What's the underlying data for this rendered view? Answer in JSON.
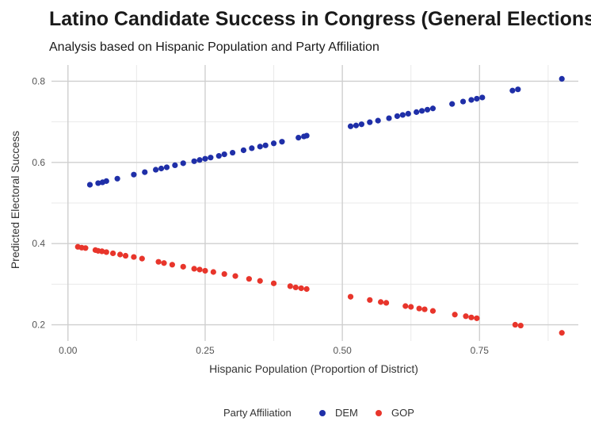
{
  "chart_data": {
    "type": "scatter",
    "title": "Latino Candidate Success in Congress (General Elections)",
    "subtitle": "Analysis based on Hispanic Population and Party Affiliation",
    "xlabel": "Hispanic Population (Proportion of District)",
    "ylabel": "Predicted Electoral Success",
    "xlim": [
      -0.03,
      0.93
    ],
    "ylim": [
      0.16,
      0.84
    ],
    "x_ticks": [
      "0.00",
      "0.25",
      "0.50",
      "0.75"
    ],
    "x_tick_values": [
      0,
      0.25,
      0.5,
      0.75
    ],
    "y_ticks": [
      "0.2",
      "0.4",
      "0.6",
      "0.8"
    ],
    "y_tick_values": [
      0.2,
      0.4,
      0.6,
      0.8
    ],
    "grid": true,
    "legend": {
      "title": "Party Affiliation",
      "position": "bottom",
      "entries": [
        "DEM",
        "GOP"
      ]
    },
    "series": [
      {
        "name": "DEM",
        "color": "#1f2fa8",
        "points": [
          [
            0.04,
            0.545
          ],
          [
            0.055,
            0.549
          ],
          [
            0.063,
            0.551
          ],
          [
            0.07,
            0.554
          ],
          [
            0.09,
            0.56
          ],
          [
            0.12,
            0.57
          ],
          [
            0.14,
            0.576
          ],
          [
            0.16,
            0.582
          ],
          [
            0.17,
            0.585
          ],
          [
            0.18,
            0.588
          ],
          [
            0.195,
            0.593
          ],
          [
            0.21,
            0.598
          ],
          [
            0.23,
            0.603
          ],
          [
            0.24,
            0.606
          ],
          [
            0.25,
            0.609
          ],
          [
            0.26,
            0.612
          ],
          [
            0.275,
            0.616
          ],
          [
            0.285,
            0.62
          ],
          [
            0.3,
            0.624
          ],
          [
            0.32,
            0.63
          ],
          [
            0.335,
            0.635
          ],
          [
            0.35,
            0.639
          ],
          [
            0.36,
            0.642
          ],
          [
            0.375,
            0.647
          ],
          [
            0.39,
            0.651
          ],
          [
            0.42,
            0.661
          ],
          [
            0.43,
            0.664
          ],
          [
            0.435,
            0.666
          ],
          [
            0.515,
            0.689
          ],
          [
            0.525,
            0.691
          ],
          [
            0.535,
            0.694
          ],
          [
            0.55,
            0.699
          ],
          [
            0.565,
            0.703
          ],
          [
            0.585,
            0.709
          ],
          [
            0.6,
            0.714
          ],
          [
            0.61,
            0.717
          ],
          [
            0.62,
            0.72
          ],
          [
            0.635,
            0.724
          ],
          [
            0.645,
            0.727
          ],
          [
            0.655,
            0.73
          ],
          [
            0.665,
            0.733
          ],
          [
            0.7,
            0.744
          ],
          [
            0.72,
            0.75
          ],
          [
            0.735,
            0.754
          ],
          [
            0.745,
            0.757
          ],
          [
            0.755,
            0.76
          ],
          [
            0.81,
            0.777
          ],
          [
            0.82,
            0.78
          ],
          [
            0.9,
            0.806
          ]
        ]
      },
      {
        "name": "GOP",
        "color": "#e8352b",
        "points": [
          [
            0.018,
            0.392
          ],
          [
            0.025,
            0.39
          ],
          [
            0.032,
            0.389
          ],
          [
            0.05,
            0.384
          ],
          [
            0.055,
            0.382
          ],
          [
            0.062,
            0.381
          ],
          [
            0.07,
            0.379
          ],
          [
            0.082,
            0.376
          ],
          [
            0.095,
            0.373
          ],
          [
            0.105,
            0.37
          ],
          [
            0.12,
            0.367
          ],
          [
            0.135,
            0.363
          ],
          [
            0.165,
            0.355
          ],
          [
            0.175,
            0.352
          ],
          [
            0.19,
            0.348
          ],
          [
            0.21,
            0.343
          ],
          [
            0.23,
            0.338
          ],
          [
            0.24,
            0.336
          ],
          [
            0.25,
            0.333
          ],
          [
            0.265,
            0.33
          ],
          [
            0.285,
            0.325
          ],
          [
            0.305,
            0.32
          ],
          [
            0.33,
            0.313
          ],
          [
            0.35,
            0.308
          ],
          [
            0.375,
            0.302
          ],
          [
            0.405,
            0.295
          ],
          [
            0.415,
            0.292
          ],
          [
            0.425,
            0.29
          ],
          [
            0.435,
            0.288
          ],
          [
            0.515,
            0.269
          ],
          [
            0.55,
            0.261
          ],
          [
            0.57,
            0.256
          ],
          [
            0.58,
            0.254
          ],
          [
            0.615,
            0.246
          ],
          [
            0.625,
            0.244
          ],
          [
            0.64,
            0.24
          ],
          [
            0.65,
            0.238
          ],
          [
            0.665,
            0.234
          ],
          [
            0.705,
            0.225
          ],
          [
            0.725,
            0.221
          ],
          [
            0.735,
            0.218
          ],
          [
            0.745,
            0.216
          ],
          [
            0.815,
            0.2
          ],
          [
            0.825,
            0.198
          ],
          [
            0.9,
            0.18
          ]
        ]
      }
    ]
  }
}
